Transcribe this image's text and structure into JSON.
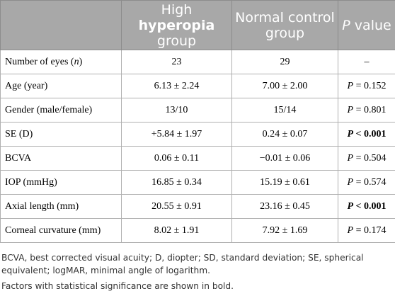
{
  "table": {
    "headers": {
      "col1": "",
      "col2_pre": "High ",
      "col2_bold": "hyperopia",
      "col2_post": " group",
      "col3": "Normal control group",
      "col4_ital": "P",
      "col4_rest": " value"
    },
    "rows": [
      {
        "label": "Number of eyes (",
        "label_ital": "n",
        "label_post": ")",
        "high": "23",
        "normal": "29",
        "p_prefix": "",
        "p_value": "–",
        "significant": false
      },
      {
        "label": "Age (year)",
        "label_ital": "",
        "label_post": "",
        "high": "6.13 ± 2.24",
        "normal": "7.00 ± 2.00",
        "p_prefix": "P",
        "p_value": " = 0.152",
        "significant": false
      },
      {
        "label": "Gender (male/female)",
        "label_ital": "",
        "label_post": "",
        "high": "13/10",
        "normal": "15/14",
        "p_prefix": "P",
        "p_value": " = 0.801",
        "significant": false
      },
      {
        "label": "SE (D)",
        "label_ital": "",
        "label_post": "",
        "high": "+5.84 ± 1.97",
        "normal": "0.24 ± 0.07",
        "p_prefix": "P",
        "p_value": " < 0.001",
        "significant": true
      },
      {
        "label": "BCVA",
        "label_ital": "",
        "label_post": "",
        "high": "0.06 ± 0.11",
        "normal": "−0.01 ± 0.06",
        "p_prefix": "P",
        "p_value": " = 0.504",
        "significant": false
      },
      {
        "label": "IOP (mmHg)",
        "label_ital": "",
        "label_post": "",
        "high": "16.85 ± 0.34",
        "normal": "15.19 ± 0.61",
        "p_prefix": "P",
        "p_value": " = 0.574",
        "significant": false
      },
      {
        "label": "Axial length (mm)",
        "label_ital": "",
        "label_post": "",
        "high": "20.55 ± 0.91",
        "normal": "23.16 ± 0.45",
        "p_prefix": "P",
        "p_value": " < 0.001",
        "significant": true
      },
      {
        "label": "Corneal curvature (mm)",
        "label_ital": "",
        "label_post": "",
        "high": "8.02 ± 1.91",
        "normal": "7.92 ± 1.69",
        "p_prefix": "P",
        "p_value": " = 0.174",
        "significant": false
      }
    ]
  },
  "footnotes": {
    "abbreviations": "BCVA, best corrected visual acuity; D, diopter; SD, standard deviation; SE, spherical equivalent; logMAR, minimal angle of logarithm.",
    "significance": "Factors with statistical significance are shown in bold."
  },
  "colors": {
    "header_bg": "#a8a8a8",
    "header_text": "#ffffff",
    "border": "#b0b0b0"
  }
}
